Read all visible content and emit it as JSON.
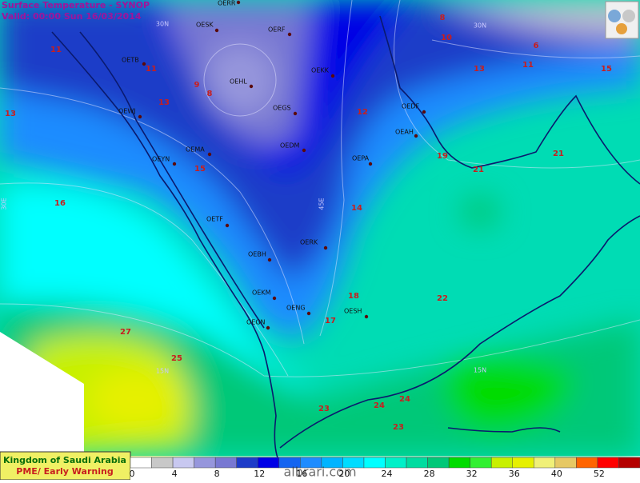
{
  "header": {
    "title": "Surface Temperature  - SYNOP",
    "valid": "Valid: 00:00 Sun 16/03/2014"
  },
  "grid_labels": [
    "30N",
    "30N",
    "15N",
    "15N",
    "45E",
    "30E"
  ],
  "stations": [
    "OERR",
    "OESK",
    "OERF",
    "OETB",
    "OEHL",
    "OEKK",
    "OEWJ",
    "OEGS",
    "OEDF",
    "OEAH",
    "OEMA",
    "OEDM",
    "OEPA",
    "OEYN",
    "OETF",
    "OERK",
    "OEBH",
    "OEKM",
    "OENG",
    "OESH",
    "OEGN"
  ],
  "contour_labels": [
    11,
    11,
    9,
    8,
    13,
    13,
    12,
    15,
    16,
    14,
    18,
    17,
    19,
    21,
    21,
    22,
    27,
    25,
    23,
    24,
    24,
    23,
    8,
    10,
    6,
    13,
    11,
    15
  ],
  "footer": {
    "line1": "Kingdom of Saudi Arabia",
    "line2": "PME/ Early Warning"
  },
  "watermark": "albrari.com",
  "legend": {
    "ticks": [
      0,
      4,
      8,
      12,
      16,
      20,
      24,
      28,
      32,
      36,
      40,
      52
    ],
    "colors": [
      "#ffffff",
      "#c8c8c8",
      "#c8c8f0",
      "#9696dc",
      "#7878d2",
      "#1e3cc8",
      "#0000e6",
      "#1464f0",
      "#1e8cff",
      "#00b4ff",
      "#00dcff",
      "#00ffff",
      "#00f0c8",
      "#00dca0",
      "#00c878",
      "#00dc00",
      "#32f032",
      "#c8f000",
      "#e6f000",
      "#f0f078",
      "#e6c864",
      "#ff6400",
      "#ff0000",
      "#b40000"
    ]
  }
}
